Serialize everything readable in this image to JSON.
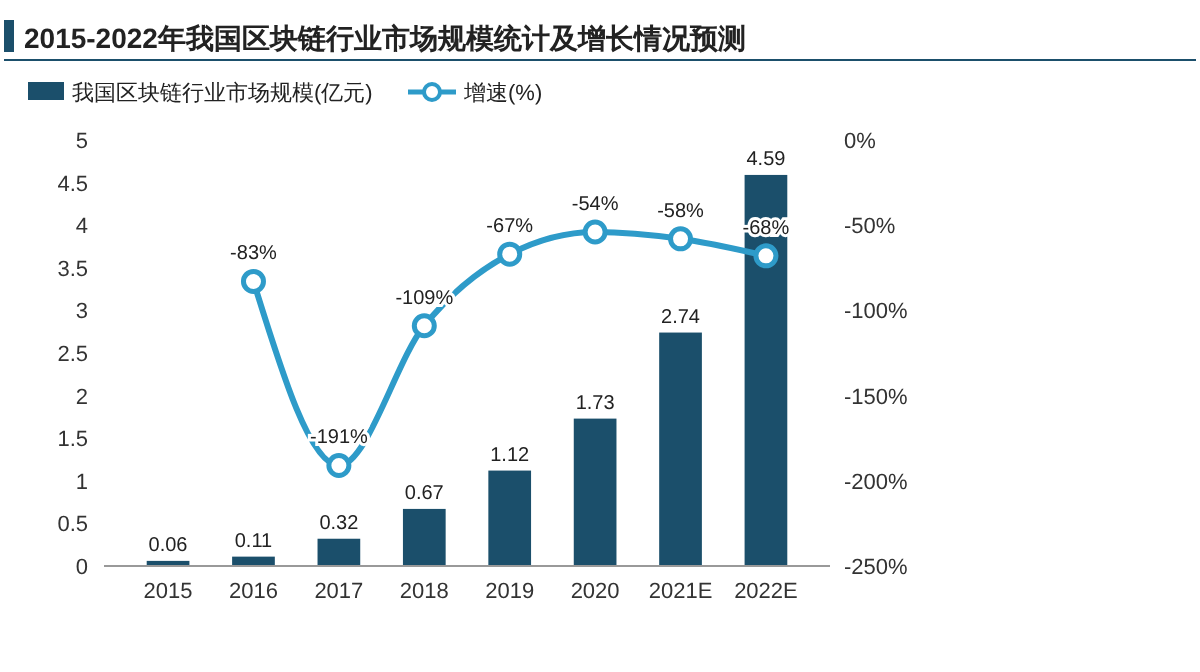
{
  "chart_data": {
    "type": "bar",
    "title": "2015-2022年我国区块链行业市场规模统计及增长情况预测",
    "categories": [
      "2015",
      "2016",
      "2017",
      "2018",
      "2019",
      "2020",
      "2021E",
      "2022E"
    ],
    "series": [
      {
        "name": "我国区块链行业市场规模(亿元)",
        "color": "#1b4f6b",
        "values": [
          0.06,
          0.11,
          0.32,
          0.67,
          1.12,
          1.73,
          2.74,
          4.59
        ],
        "value_labels": [
          "0.06",
          "0.11",
          "0.32",
          "0.67",
          "1.12",
          "1.73",
          "2.74",
          "4.59"
        ]
      },
      {
        "name": "增速(%)",
        "type": "line",
        "axis": "y2",
        "color": "#2e9bc9",
        "values": [
          null,
          -83,
          -191,
          -109,
          -67,
          -54,
          -58,
          -68
        ],
        "value_labels": [
          null,
          "-83%",
          "-191%",
          "-109%",
          "-67%",
          "-54%",
          "-58%",
          "-68%"
        ]
      }
    ],
    "ylim": [
      0,
      5
    ],
    "yticks": [
      0,
      0.5,
      1,
      1.5,
      2,
      2.5,
      3,
      3.5,
      4,
      4.5,
      5
    ],
    "y2lim": [
      -250,
      0
    ],
    "y2ticks": [
      {
        "value": 0,
        "label": "0%"
      },
      {
        "value": -50,
        "label": "-50%"
      },
      {
        "value": -100,
        "label": "-100%"
      },
      {
        "value": -150,
        "label": "-150%"
      },
      {
        "value": -200,
        "label": "-200%"
      },
      {
        "value": -250,
        "label": "-250%"
      }
    ],
    "grid": false,
    "legend": "top left",
    "marker": "circle",
    "line_style": "solid"
  }
}
